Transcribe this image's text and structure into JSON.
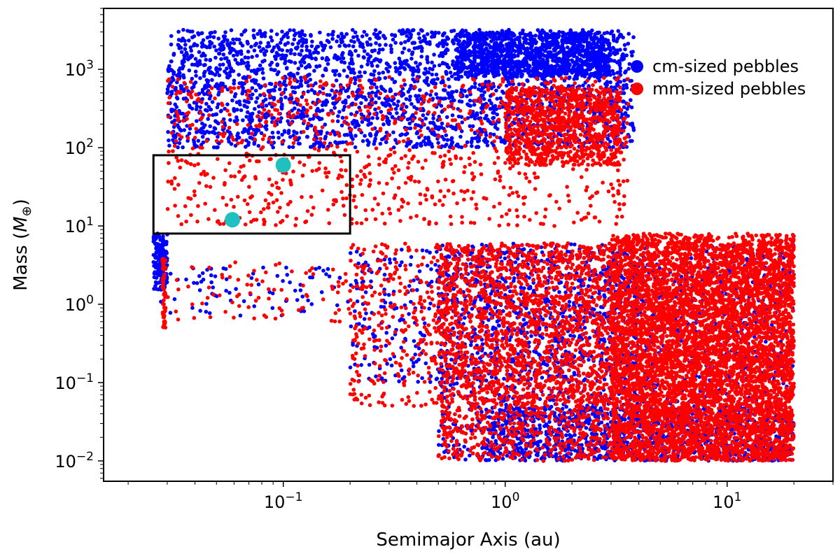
{
  "chart_data": {
    "type": "scatter",
    "xlabel": "Semimajor Axis (au)",
    "ylabel_text": "Mass (",
    "ylabel_symbol": "M",
    "ylabel_subscript": "⊕",
    "ylabel_close": ")",
    "xscale": "log",
    "yscale": "log",
    "xlim": [
      0.0155,
      30
    ],
    "ylim": [
      0.0055,
      6000
    ],
    "grid": false,
    "legend_position": "top-right",
    "x_ticks": [
      {
        "value": 0.1,
        "base": "10",
        "exp": "−1"
      },
      {
        "value": 1,
        "base": "10",
        "exp": "0"
      },
      {
        "value": 10,
        "base": "10",
        "exp": "1"
      }
    ],
    "y_ticks": [
      {
        "value": 0.01,
        "base": "10",
        "exp": "−2"
      },
      {
        "value": 0.1,
        "base": "10",
        "exp": "−1"
      },
      {
        "value": 1,
        "base": "10",
        "exp": "0"
      },
      {
        "value": 10,
        "base": "10",
        "exp": "1"
      },
      {
        "value": 100,
        "base": "10",
        "exp": "2"
      },
      {
        "value": 1000,
        "base": "10",
        "exp": "3"
      }
    ],
    "series": [
      {
        "name": "cm-sized pebbles",
        "color": "#0000ff",
        "regions": [
          {
            "x": [
              0.03,
              3.8
            ],
            "y": [
              100,
              3200
            ],
            "n": 2600
          },
          {
            "x": [
              0.6,
              3.0
            ],
            "y": [
              800,
              3000
            ],
            "n": 1000
          },
          {
            "x": [
              0.026,
              0.03
            ],
            "y": [
              1.5,
              8
            ],
            "n": 160
          },
          {
            "x": [
              0.028,
              0.2
            ],
            "y": [
              0.7,
              3
            ],
            "n": 80
          },
          {
            "x": [
              0.2,
              4
            ],
            "y": [
              0.1,
              5
            ],
            "n": 500
          },
          {
            "x": [
              0.5,
              20
            ],
            "y": [
              0.01,
              6
            ],
            "n": 3600
          },
          {
            "x": [
              0.8,
              20
            ],
            "y": [
              0.01,
              0.05
            ],
            "n": 900
          }
        ]
      },
      {
        "name": "mm-sized pebbles",
        "color": "#ff0000",
        "regions": [
          {
            "x": [
              0.03,
              3.6
            ],
            "y": [
              10,
              800
            ],
            "n": 900
          },
          {
            "x": [
              1.0,
              3.3
            ],
            "y": [
              60,
              600
            ],
            "n": 900
          },
          {
            "x": [
              0.0285,
              0.0295
            ],
            "y": [
              0.5,
              4
            ],
            "n": 60
          },
          {
            "x": [
              0.03,
              0.25
            ],
            "y": [
              0.6,
              3.5
            ],
            "n": 90
          },
          {
            "x": [
              0.2,
              3
            ],
            "y": [
              0.05,
              6
            ],
            "n": 800
          },
          {
            "x": [
              0.5,
              20
            ],
            "y": [
              0.01,
              6
            ],
            "n": 3600
          },
          {
            "x": [
              3,
              20
            ],
            "y": [
              0.01,
              8
            ],
            "n": 4500
          }
        ]
      }
    ],
    "highlighted_points": [
      {
        "x": 0.1,
        "y": 60,
        "color": "#20c0c0"
      },
      {
        "x": 0.059,
        "y": 12,
        "color": "#20c0c0"
      }
    ],
    "box_region": {
      "x": [
        0.026,
        0.2
      ],
      "y": [
        8,
        80
      ]
    }
  }
}
